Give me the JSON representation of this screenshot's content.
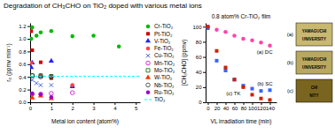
{
  "chart_data": [
    {
      "type": "scatter",
      "title": "Degradation of CH₃CHO on TiO₂ doped with various metal ions",
      "x_label": "Metal ion content (atom%)",
      "y_label": "r₀ (ppmv min⁻¹)",
      "xlim": [
        0,
        5.2
      ],
      "ylim": [
        0,
        1.25
      ],
      "xticks": [
        0,
        1,
        2,
        3,
        4,
        5
      ],
      "yticks": [
        {
          "value": 0,
          "label": "0.0"
        },
        0.2,
        0.4,
        0.6,
        0.8,
        {
          "value": 1.0,
          "label": "1.0"
        },
        1.2
      ],
      "legend": "right",
      "series": [
        {
          "name": "Cr-TiO₂",
          "color": "#00bb00",
          "marker": "circle",
          "x": [
            0.05,
            0.1,
            0.3,
            0.5,
            1.0,
            2.0,
            3.0,
            4.2
          ],
          "values": [
            1.0,
            1.18,
            1.05,
            1.1,
            1.12,
            1.04,
            1.05,
            0.88
          ]
        },
        {
          "name": "Pt-TiO₂",
          "color": "#cc0000",
          "marker": "square",
          "x": [
            0.05,
            0.1,
            0.5,
            1.0,
            2.0
          ],
          "values": [
            1.12,
            0.82,
            0.63,
            0.38,
            0.25
          ]
        },
        {
          "name": "V-TiO₂",
          "color": "#2222ff",
          "marker": "triangle",
          "x": [
            0.05,
            0.1,
            0.5,
            1.0,
            2.0
          ],
          "values": [
            0.55,
            0.62,
            0.41,
            0.65,
            0.25
          ]
        },
        {
          "name": "Fe-TiO₂",
          "color": "#ff4444",
          "marker": "circle",
          "x": [
            0.05,
            0.5,
            1.0,
            2.0
          ],
          "values": [
            0.62,
            0.42,
            0.41,
            0.27
          ]
        },
        {
          "name": "Cu-TiO₂",
          "color": "#1144cc",
          "marker": "x",
          "x": [
            0.1,
            0.3,
            0.5,
            1.0
          ],
          "values": [
            0.35,
            0.3,
            0.27,
            0.27
          ]
        },
        {
          "name": "Mn-TiO₂",
          "color": "#cc00cc",
          "marker": "circle-open",
          "x": [
            0.1,
            0.5,
            1.0,
            2.0
          ],
          "values": [
            0.13,
            0.13,
            0.14,
            0.15
          ]
        },
        {
          "name": "Mo-TiO₂",
          "color": "#006600",
          "marker": "square-open",
          "x": [
            0.1,
            0.5,
            1.0
          ],
          "values": [
            0.42,
            0.42,
            0.41
          ]
        },
        {
          "name": "W-TiO₂",
          "color": "#ff3300",
          "marker": "triangle",
          "x": [
            0.1,
            0.5,
            1.0
          ],
          "values": [
            0.07,
            0.1,
            0.06
          ]
        },
        {
          "name": "Nb-TiO₂",
          "color": "#333333",
          "marker": "circle-open",
          "x": [
            0.1,
            0.5,
            1.0
          ],
          "values": [
            0.42,
            0.4,
            0.4
          ]
        },
        {
          "name": "Ru-TiO₂",
          "color": "#9900cc",
          "marker": "circle",
          "x": [
            0.1,
            0.5,
            1.0
          ],
          "values": [
            0.14,
            0.12,
            0.08
          ]
        },
        {
          "name": "TiO₂",
          "type": "hline",
          "color": "cyan",
          "line_style": "dashed",
          "values": [
            0.41
          ]
        }
      ]
    },
    {
      "type": "scatter",
      "title": "0.8 atom% Cr-TiO₂ film",
      "x_label": "VL irradiation time (min)",
      "y_label": "[CH₃CHO] (ppmv)",
      "xlim": [
        -5,
        155
      ],
      "ylim": [
        0,
        105
      ],
      "xticks": [
        0,
        20,
        40,
        60,
        80,
        100,
        120,
        140
      ],
      "yticks": [
        0,
        20,
        40,
        60,
        80,
        100
      ],
      "series": [
        {
          "name": "(a) DC",
          "color": "#ff44aa",
          "marker": "circle",
          "x": [
            0,
            20,
            40,
            60,
            80,
            100,
            120,
            140
          ],
          "values": [
            100,
            96,
            93,
            88,
            84,
            82,
            79,
            75
          ]
        },
        {
          "name": "(b) SC",
          "color": "#3366ff",
          "marker": "square",
          "x": [
            0,
            20,
            40,
            60,
            80,
            100,
            120,
            140
          ],
          "values": [
            98,
            55,
            42,
            30,
            22,
            18,
            15,
            16
          ]
        },
        {
          "name": "(c) TK",
          "color": "#cc2200",
          "marker": "square",
          "x": [
            0,
            20,
            40,
            60,
            80,
            100,
            120,
            140
          ],
          "values": [
            100,
            68,
            46,
            30,
            20,
            10,
            5,
            3
          ]
        }
      ],
      "annotations": [
        {
          "label": "(a)",
          "text": [
            "YAMAGUCHI",
            "UNIVERSITY"
          ],
          "color": "#c8b870"
        },
        {
          "label": "(b)",
          "text": [
            "YAMAGUCHI",
            "UNIVERSITY"
          ],
          "color": "#b8a860"
        },
        {
          "label": "(c)",
          "text": [
            "CHI",
            "NITY"
          ],
          "color": "#7a6520"
        }
      ]
    }
  ]
}
